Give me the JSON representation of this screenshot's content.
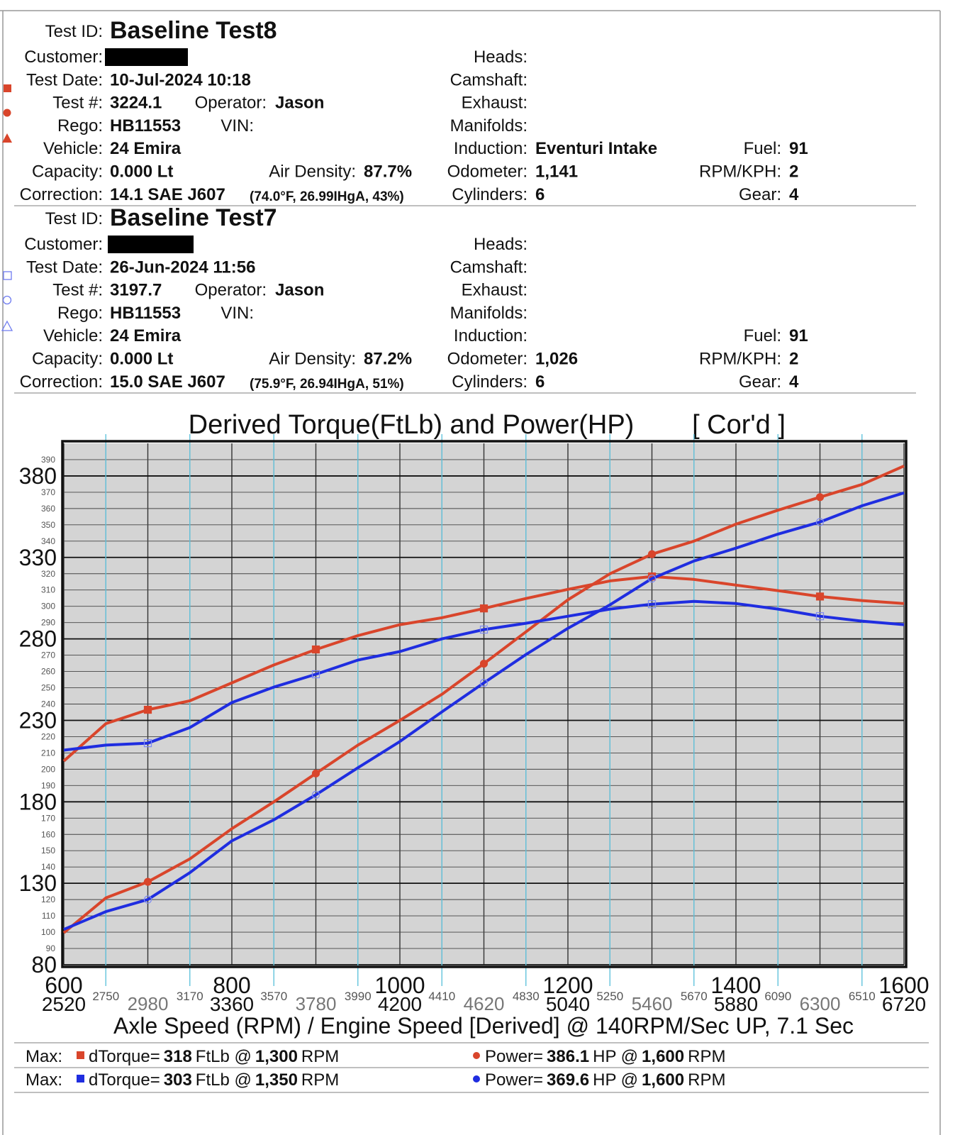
{
  "tests": [
    {
      "fields": [
        {
          "label": "Test ID:",
          "value": "Baseline Test8"
        },
        {
          "label": "Customer:"
        },
        {
          "label": "Test Date:",
          "value": "10-Jul-2024 10:18"
        },
        {
          "label": "Test #:",
          "value": "3224.1"
        },
        {
          "label": "Operator:",
          "value": "Jason"
        },
        {
          "label": "Rego:",
          "value": "HB11553"
        },
        {
          "label": "VIN:"
        },
        {
          "label": "Vehicle:",
          "value": "24 Emira"
        },
        {
          "label": "Capacity:",
          "value": "0.000 Lt"
        },
        {
          "label": "Air Density:",
          "value": "87.7%"
        },
        {
          "label": "Correction:",
          "value": "14.1 SAE J607"
        },
        {
          "label": "Heads:"
        },
        {
          "label": "Camshaft:"
        },
        {
          "label": "Exhaust:"
        },
        {
          "label": "Manifolds:"
        },
        {
          "label": "Induction:",
          "value": "Eventuri Intake"
        },
        {
          "label": "Odometer:",
          "value": "1,141"
        },
        {
          "label": "Cylinders:",
          "value": "6"
        },
        {
          "label": "Fuel:",
          "value": "91"
        },
        {
          "label": "RPM/KPH:",
          "value": "2"
        },
        {
          "label": "Gear:",
          "value": "4"
        }
      ],
      "conditions": "(74.0°F, 26.99IHgA, 43%)"
    },
    {
      "fields": [
        {
          "label": "Test ID:",
          "value": "Baseline Test7"
        },
        {
          "label": "Customer:"
        },
        {
          "label": "Test Date:",
          "value": "26-Jun-2024 11:56"
        },
        {
          "label": "Test #:",
          "value": "3197.7"
        },
        {
          "label": "Operator:",
          "value": "Jason"
        },
        {
          "label": "Rego:",
          "value": "HB11553"
        },
        {
          "label": "VIN:"
        },
        {
          "label": "Vehicle:",
          "value": "24 Emira"
        },
        {
          "label": "Capacity:",
          "value": "0.000 Lt"
        },
        {
          "label": "Air Density:",
          "value": "87.2%"
        },
        {
          "label": "Correction:",
          "value": "15.0 SAE J607"
        },
        {
          "label": "Heads:"
        },
        {
          "label": "Camshaft:"
        },
        {
          "label": "Exhaust:"
        },
        {
          "label": "Manifolds:"
        },
        {
          "label": "Induction:"
        },
        {
          "label": "Odometer:",
          "value": "1,026"
        },
        {
          "label": "Cylinders:",
          "value": "6"
        },
        {
          "label": "Fuel:",
          "value": "91"
        },
        {
          "label": "RPM/KPH:",
          "value": "2"
        },
        {
          "label": "Gear:",
          "value": "4"
        }
      ],
      "conditions": "(75.9°F, 26.94IHgA, 51%)"
    }
  ],
  "chart_data": {
    "type": "line",
    "title": "Derived Torque(FtLb) and Power(HP)",
    "title_note": "[ Cor'd ]",
    "x_label": "Axle Speed (RPM) / Engine Speed [Derived] @ 140RPM/Sec UP, 7.1 Sec",
    "x": [
      600,
      650,
      700,
      750,
      800,
      850,
      900,
      950,
      1000,
      1050,
      1100,
      1150,
      1200,
      1250,
      1300,
      1350,
      1400,
      1450,
      1500,
      1550,
      1600
    ],
    "xlim": [
      600,
      1600
    ],
    "ylim": [
      80,
      400
    ],
    "xticks": [
      600,
      800,
      1000,
      1200,
      1400,
      1600
    ],
    "x_engine_ticks": [
      {
        "value": 600,
        "label": "2520"
      },
      {
        "value": 800,
        "label": "3360"
      },
      {
        "value": 1000,
        "label": "4200"
      },
      {
        "value": 1200,
        "label": "5040"
      },
      {
        "value": 1400,
        "label": "5880"
      },
      {
        "value": 1600,
        "label": "6720"
      }
    ],
    "x_engine_mid_ticks": [
      {
        "value": 700,
        "label": "2980"
      },
      {
        "value": 900,
        "label": "3780"
      },
      {
        "value": 1100,
        "label": "4620"
      },
      {
        "value": 1300,
        "label": "5460"
      },
      {
        "value": 1500,
        "label": "6300"
      }
    ],
    "x_engine_minor_ticks": [
      {
        "value": 650,
        "label": "2750"
      },
      {
        "value": 750,
        "label": "3170"
      },
      {
        "value": 850,
        "label": "3570"
      },
      {
        "value": 950,
        "label": "3990"
      },
      {
        "value": 1050,
        "label": "4410"
      },
      {
        "value": 1150,
        "label": "4830"
      },
      {
        "value": 1250,
        "label": "5250"
      },
      {
        "value": 1350,
        "label": "5670"
      },
      {
        "value": 1450,
        "label": "6090"
      },
      {
        "value": 1550,
        "label": "6510"
      }
    ],
    "yticks": [
      80,
      130,
      180,
      230,
      280,
      330,
      380
    ],
    "yticks_minor": [
      90,
      100,
      110,
      120,
      140,
      150,
      160,
      170,
      190,
      200,
      210,
      220,
      240,
      250,
      260,
      270,
      290,
      300,
      310,
      320,
      340,
      350,
      360,
      370,
      390
    ],
    "grid": true,
    "series": [
      {
        "color": "#d9452b",
        "marker": "square",
        "filled": true,
        "values": [
          205,
          228,
          236.5,
          242,
          253,
          264,
          273.5,
          282,
          288.7,
          293,
          298.7,
          304.8,
          310.4,
          315.6,
          318.3,
          316.5,
          313,
          309.6,
          306,
          303.5,
          301.7
        ]
      },
      {
        "color": "#d9452b",
        "marker": "circle",
        "filled": true,
        "values": [
          99.6,
          121,
          130.9,
          145,
          163.5,
          180,
          197.4,
          214.8,
          230,
          246,
          264.8,
          284.3,
          304,
          320,
          332,
          340,
          350.4,
          359,
          367,
          374.8,
          386.1
        ]
      },
      {
        "color": "#1f2de0",
        "marker": "square",
        "filled": false,
        "values": [
          211.7,
          214.8,
          216,
          225.6,
          240.9,
          250.4,
          258.3,
          267,
          272.2,
          280,
          285.7,
          289.6,
          293.9,
          298.3,
          301.3,
          303,
          301.7,
          298.3,
          293.9,
          290.9,
          288.7
        ]
      },
      {
        "color": "#1f2de0",
        "marker": "circle",
        "filled": false,
        "values": [
          101.7,
          112.6,
          120,
          136.5,
          156,
          169,
          184.3,
          200.9,
          217,
          235.2,
          253,
          270.4,
          286.5,
          300.9,
          317,
          327.8,
          335.7,
          344.3,
          351.7,
          361.7,
          369.6
        ]
      }
    ]
  },
  "summary": [
    {
      "label": "Max:",
      "color": "#d9452b",
      "torque_text": "dTorque=",
      "torque": "318",
      "torque_unit": "FtLb @",
      "torque_rpm": "1,300",
      "torque_rpm_unit": "RPM",
      "power_text": "Power=",
      "power": "386.1",
      "power_unit": "HP @",
      "power_rpm": "1,600",
      "power_rpm_unit": "RPM"
    },
    {
      "label": "Max:",
      "color": "#1f2de0",
      "torque_text": "dTorque=",
      "torque": "303",
      "torque_unit": "FtLb @",
      "torque_rpm": "1,350",
      "torque_rpm_unit": "RPM",
      "power_text": "Power=",
      "power": "369.6",
      "power_unit": "HP @",
      "power_rpm": "1,600",
      "power_rpm_unit": "RPM"
    }
  ]
}
